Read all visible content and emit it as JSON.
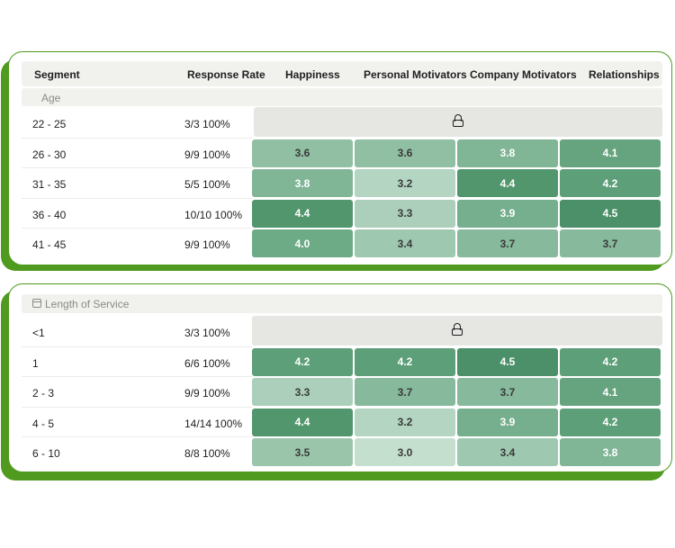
{
  "headers": {
    "segment": "Segment",
    "response_rate": "Response Rate",
    "happiness": "Happiness",
    "personal_motivators": "Personal Motivators",
    "company_motivators": "Company Motivators",
    "relationships": "Relationships"
  },
  "colors": {
    "brand_green": "#4f9a1f",
    "score_3_0": "#c5dfcf",
    "score_3_2": "#b4d5c1",
    "score_3_3": "#abcfba",
    "score_3_4": "#9fc8b0",
    "score_3_5": "#9ac5ab",
    "score_3_6": "#91bfa3",
    "score_3_7": "#87b99c",
    "score_3_8": "#80b596",
    "score_3_9": "#76af8e",
    "score_4_0": "#6daa86",
    "score_4_1": "#65a47e",
    "score_4_2": "#5d9f78",
    "score_4_4": "#52966d",
    "score_4_5": "#4b9068"
  },
  "age_card": {
    "group_label": "Age",
    "locked_icon": "lock-icon",
    "rows": [
      {
        "segment": "22 - 25",
        "rate": "3/3  100%",
        "locked": true
      },
      {
        "segment": "26 - 30",
        "rate": "9/9  100%",
        "scores": [
          "3.6",
          "3.6",
          "3.8",
          "4.1"
        ]
      },
      {
        "segment": "31 - 35",
        "rate": "5/5  100%",
        "scores": [
          "3.8",
          "3.2",
          "4.4",
          "4.2"
        ]
      },
      {
        "segment": "36 - 40",
        "rate": "10/10  100%",
        "scores": [
          "4.4",
          "3.3",
          "3.9",
          "4.5"
        ]
      },
      {
        "segment": "41 - 45",
        "rate": "9/9   100%",
        "scores": [
          "4.0",
          "3.4",
          "3.7",
          "3.7"
        ]
      }
    ]
  },
  "service_card": {
    "group_label": "Length of Service",
    "group_icon": "calendar-icon",
    "locked_icon": "lock-icon",
    "rows": [
      {
        "segment": "<1",
        "rate": "3/3  100%",
        "locked": true
      },
      {
        "segment": "1",
        "rate": "6/6  100%",
        "scores": [
          "4.2",
          "4.2",
          "4.5",
          "4.2"
        ]
      },
      {
        "segment": "2 - 3",
        "rate": "9/9  100%",
        "scores": [
          "3.3",
          "3.7",
          "3.7",
          "4.1"
        ]
      },
      {
        "segment": "4 - 5",
        "rate": "14/14  100%",
        "scores": [
          "4.4",
          "3.2",
          "3.9",
          "4.2"
        ]
      },
      {
        "segment": "6 - 10",
        "rate": "8/8  100%",
        "scores": [
          "3.5",
          "3.0",
          "3.4",
          "3.8"
        ]
      }
    ]
  }
}
